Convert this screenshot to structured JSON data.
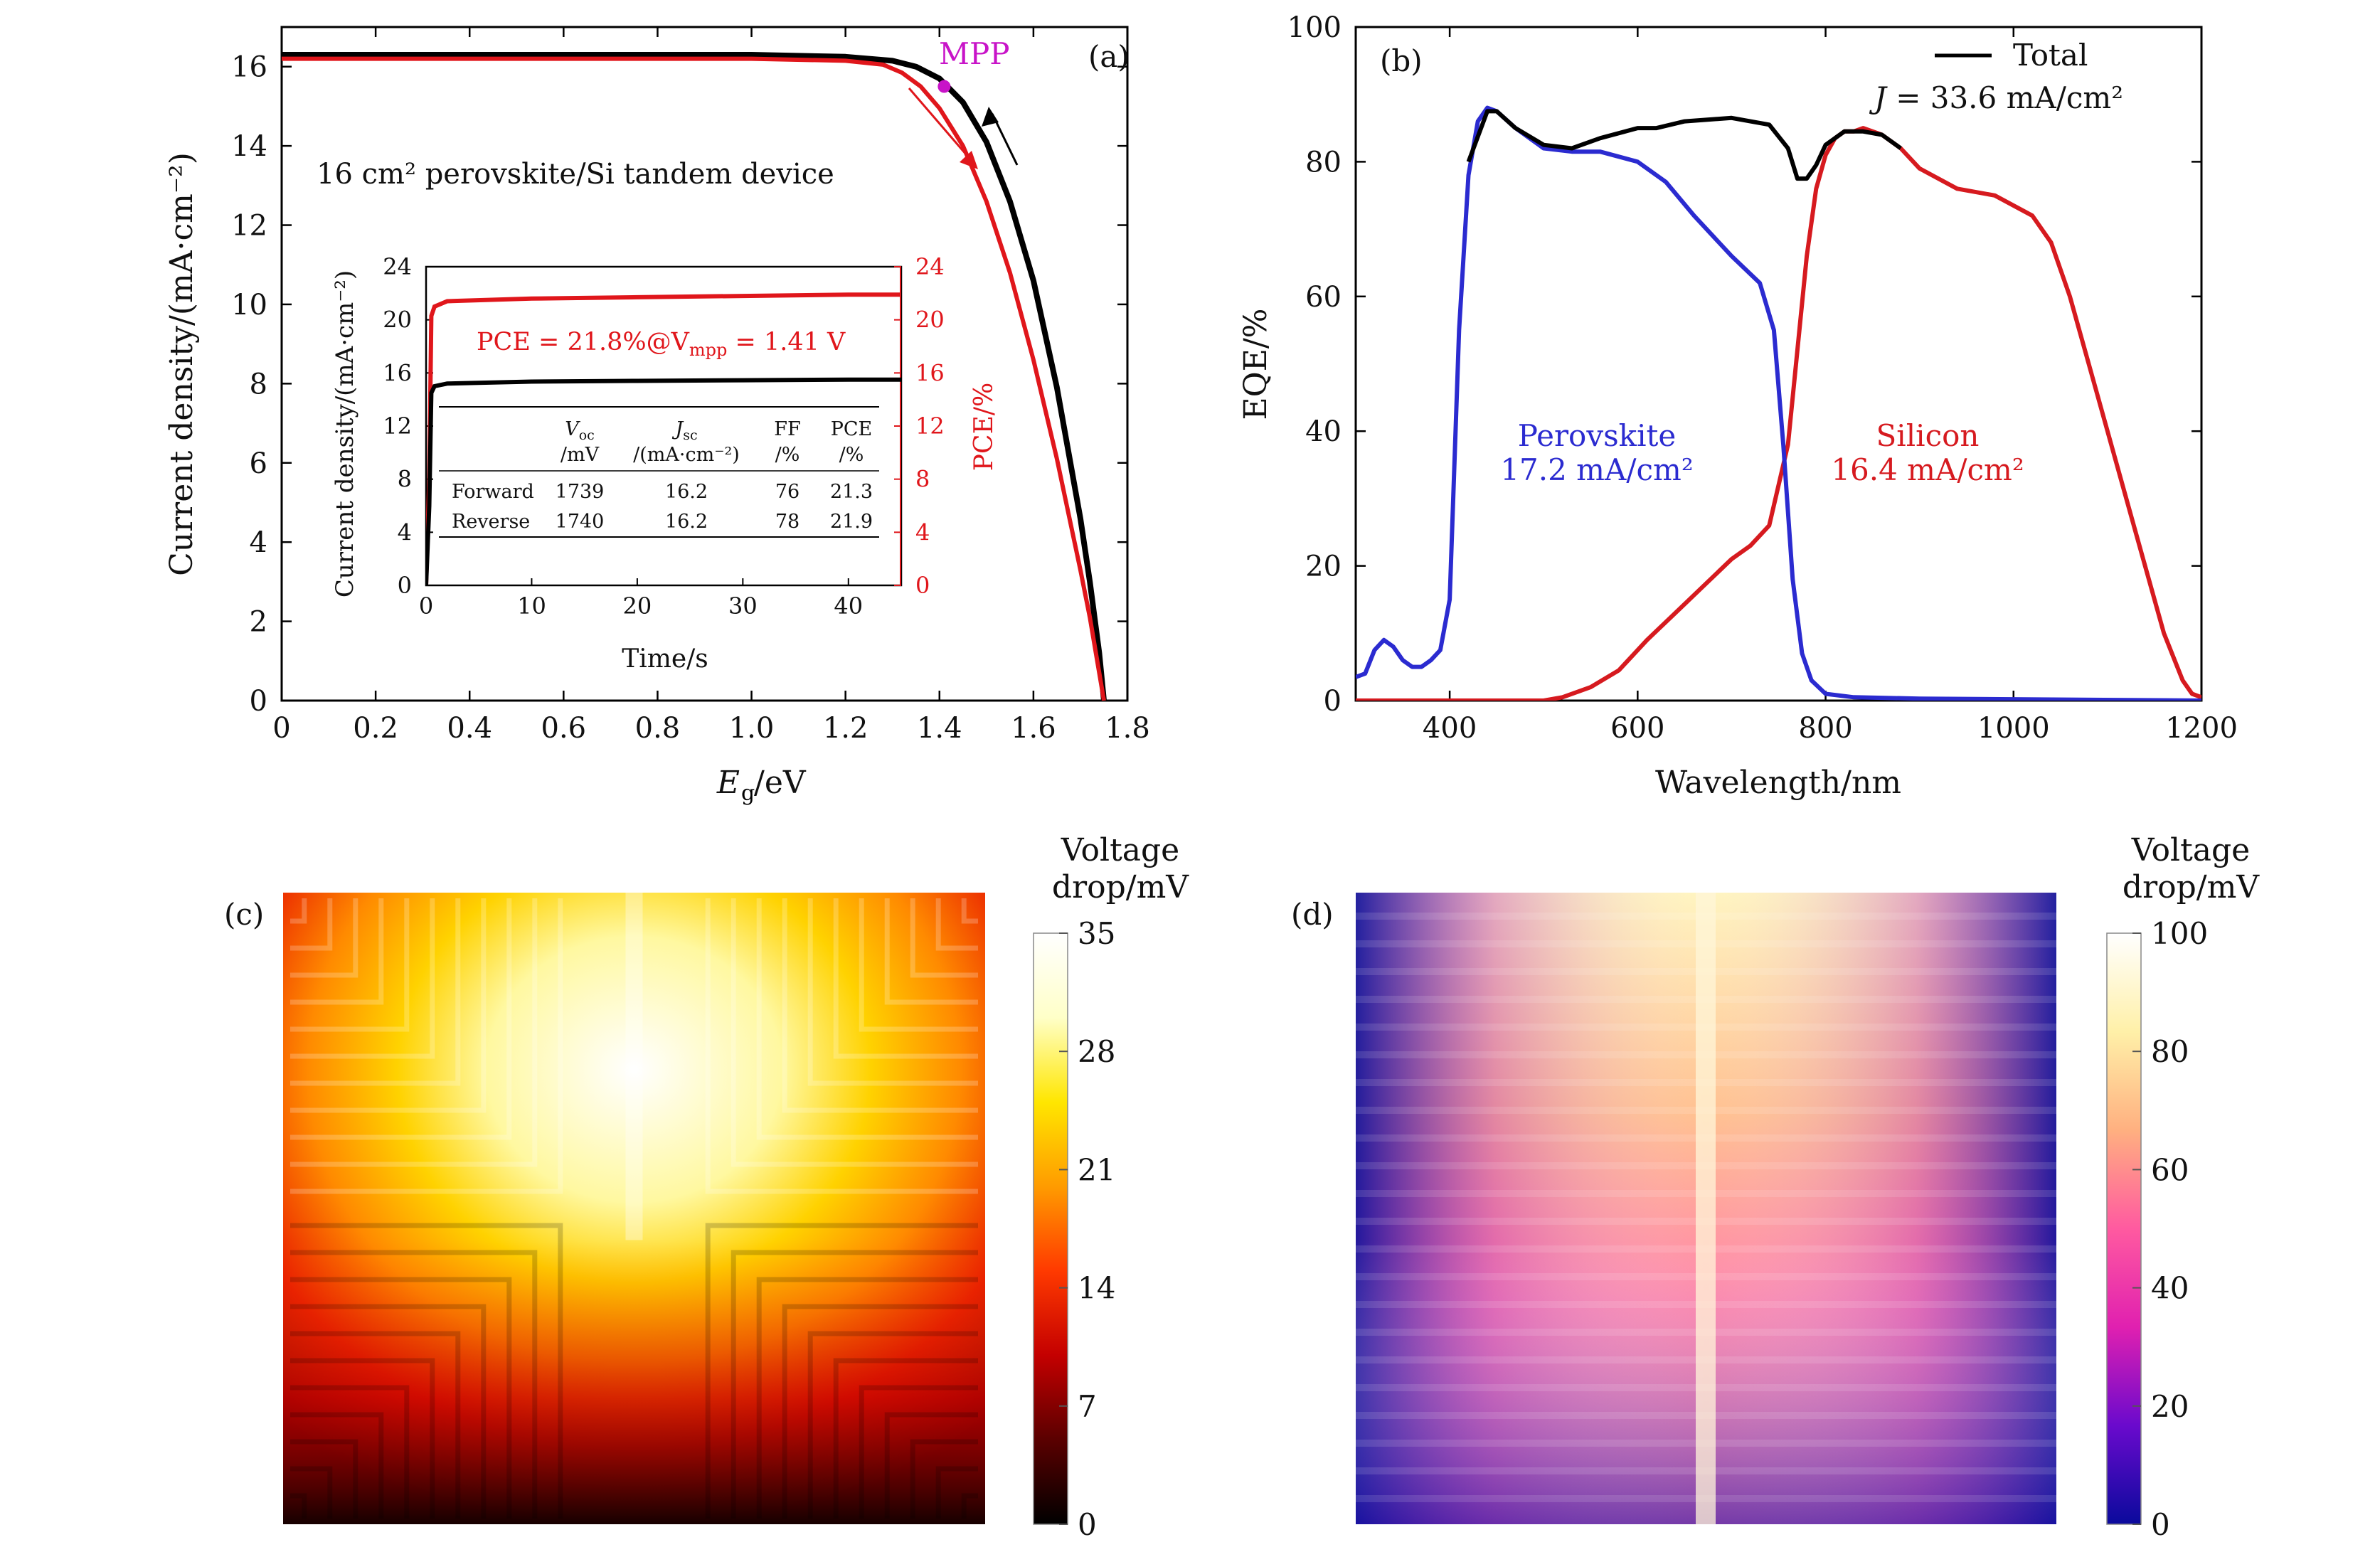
{
  "chart_data": [
    {
      "id": "a",
      "type": "line",
      "panel_label": "(a)",
      "xlabel_main": "E",
      "xlabel_sub": "g",
      "xlabel_unit": "/eV",
      "ylabel": "Current density/(mA·cm⁻²)",
      "xlim": [
        0,
        1.8
      ],
      "ylim": [
        0,
        17
      ],
      "xticks": [
        "0",
        "0.2",
        "0.4",
        "0.6",
        "0.8",
        "1.0",
        "1.2",
        "1.4",
        "1.6",
        "1.8"
      ],
      "yticks": [
        "0",
        "2",
        "4",
        "6",
        "8",
        "10",
        "12",
        "14",
        "16"
      ],
      "annotation_device": "16 cm² perovskite/Si tandem device",
      "annotation_mpp": "MPP",
      "mpp_point": [
        1.41,
        15.5
      ],
      "series": [
        {
          "color": "#000000",
          "x": [
            0,
            0.2,
            0.4,
            0.6,
            0.8,
            1.0,
            1.2,
            1.3,
            1.35,
            1.4,
            1.45,
            1.5,
            1.55,
            1.6,
            1.65,
            1.7,
            1.72,
            1.74,
            1.75
          ],
          "y": [
            16.3,
            16.3,
            16.3,
            16.3,
            16.3,
            16.3,
            16.25,
            16.15,
            16.0,
            15.7,
            15.1,
            14.1,
            12.6,
            10.6,
            7.9,
            4.6,
            3.0,
            1.2,
            0
          ]
        },
        {
          "color": "#e0161b",
          "x": [
            0,
            0.2,
            0.4,
            0.6,
            0.8,
            1.0,
            1.2,
            1.28,
            1.32,
            1.36,
            1.4,
            1.45,
            1.5,
            1.55,
            1.6,
            1.65,
            1.7,
            1.72,
            1.74,
            1.75
          ],
          "y": [
            16.2,
            16.2,
            16.2,
            16.2,
            16.2,
            16.2,
            16.15,
            16.05,
            15.85,
            15.5,
            14.95,
            14.0,
            12.6,
            10.8,
            8.6,
            6.1,
            3.3,
            2.1,
            0.7,
            0
          ]
        }
      ],
      "inset": {
        "xlabel": "Time/s",
        "ylabel_left": "Current density/(mA·cm⁻²)",
        "ylabel_right": "PCE/%",
        "xlim": [
          0,
          45
        ],
        "ylim": [
          0,
          24
        ],
        "xticks": [
          "0",
          "10",
          "20",
          "30",
          "40"
        ],
        "yticks": [
          "0",
          "4",
          "8",
          "12",
          "16",
          "20",
          "24"
        ],
        "pce_text": "PCE = 21.8%@V",
        "pce_sub": "mpp",
        "pce_tail": " = 1.41 V",
        "series": [
          {
            "color": "#e0161b",
            "x": [
              0,
              0.3,
              0.5,
              0.8,
              2,
              10,
              20,
              30,
              40,
              45
            ],
            "y": [
              0,
              8,
              20.3,
              21.0,
              21.4,
              21.6,
              21.7,
              21.8,
              21.9,
              21.9
            ]
          },
          {
            "color": "#000000",
            "x": [
              0,
              0.3,
              0.5,
              0.8,
              2,
              10,
              20,
              30,
              40,
              45
            ],
            "y": [
              0,
              6,
              14.5,
              15.0,
              15.2,
              15.35,
              15.4,
              15.45,
              15.5,
              15.5
            ]
          }
        ],
        "table": {
          "headers": [
            [
              "V",
              "oc",
              "/mV"
            ],
            [
              "J",
              "sc",
              "/(mA·cm⁻²)"
            ],
            [
              "FF",
              "",
              "/%"
            ],
            [
              "PCE",
              "",
              "/%"
            ]
          ],
          "rows": [
            {
              "label": "Forward",
              "values": [
                "1739",
                "16.2",
                "76",
                "21.3"
              ]
            },
            {
              "label": "Reverse",
              "values": [
                "1740",
                "16.2",
                "78",
                "21.9"
              ]
            }
          ]
        }
      }
    },
    {
      "id": "b",
      "type": "line",
      "panel_label": "(b)",
      "xlabel": "Wavelength/nm",
      "ylabel": "EQE/%",
      "xlim": [
        300,
        1200
      ],
      "ylim": [
        0,
        100
      ],
      "xticks": [
        "400",
        "600",
        "800",
        "1000",
        "1200"
      ],
      "yticks": [
        "0",
        "20",
        "40",
        "60",
        "80",
        "100"
      ],
      "legend": {
        "label": "Total",
        "j_label": "J",
        "j_value": " = 33.6 mA/cm²"
      },
      "labels": [
        {
          "name": "Perovskite",
          "value": "17.2 mA/cm²",
          "color": "#2b2bd0"
        },
        {
          "name": "Silicon",
          "value": "16.4 mA/cm²",
          "color": "#d61a1f"
        }
      ],
      "series": [
        {
          "name": "Total",
          "color": "#000000",
          "x": [
            420,
            440,
            450,
            470,
            500,
            530,
            560,
            600,
            620,
            650,
            700,
            740,
            760,
            770,
            780,
            790,
            800,
            820,
            840,
            860,
            880
          ],
          "y": [
            80,
            87.5,
            87.5,
            85,
            82.5,
            82,
            83.5,
            85,
            85,
            86,
            86.5,
            85.5,
            82,
            77.5,
            77.5,
            79.5,
            82.5,
            84.5,
            84.5,
            84,
            82
          ]
        },
        {
          "name": "Perovskite",
          "color": "#2b2bd0",
          "x": [
            300,
            310,
            320,
            330,
            340,
            350,
            360,
            370,
            380,
            390,
            400,
            410,
            420,
            430,
            440,
            450,
            470,
            500,
            530,
            560,
            600,
            630,
            660,
            700,
            730,
            745,
            755,
            765,
            775,
            785,
            800,
            830,
            900,
            1200
          ],
          "y": [
            3.5,
            4,
            7.5,
            9,
            8,
            6,
            5,
            5,
            6,
            7.5,
            15,
            55,
            78,
            86,
            88,
            87.5,
            85,
            82,
            81.5,
            81.5,
            80,
            77,
            72,
            66,
            62,
            55,
            38,
            18,
            7,
            3,
            1,
            0.5,
            0.3,
            0
          ]
        },
        {
          "name": "Silicon",
          "color": "#d61a1f",
          "x": [
            300,
            500,
            520,
            550,
            580,
            610,
            640,
            670,
            700,
            720,
            740,
            760,
            770,
            780,
            790,
            800,
            810,
            820,
            830,
            840,
            860,
            880,
            900,
            940,
            980,
            1020,
            1040,
            1060,
            1080,
            1100,
            1130,
            1160,
            1180,
            1190,
            1200
          ],
          "y": [
            0,
            0,
            0.5,
            2,
            4.5,
            9,
            13,
            17,
            21,
            23,
            26,
            38,
            52,
            66,
            76,
            81,
            83.5,
            84.5,
            84.5,
            85,
            84,
            82,
            79,
            76,
            75,
            72,
            68,
            60,
            50,
            40,
            25,
            10,
            3,
            1,
            0.5
          ]
        }
      ]
    },
    {
      "id": "c",
      "type": "heatmap",
      "panel_label": "(c)",
      "colorbar_title": [
        "Voltage",
        "drop/mV"
      ],
      "colorbar_ticks": [
        "0",
        "7",
        "14",
        "21",
        "28",
        "35"
      ],
      "range": [
        0,
        35
      ],
      "colormap": [
        "#000000",
        "#5a0000",
        "#c40000",
        "#ff3a00",
        "#ff9b00",
        "#ffe600",
        "#ffffc8",
        "#ffffff"
      ]
    },
    {
      "id": "d",
      "type": "heatmap",
      "panel_label": "(d)",
      "colorbar_title": [
        "Voltage",
        "drop/mV"
      ],
      "colorbar_ticks": [
        "0",
        "20",
        "40",
        "60",
        "80",
        "100"
      ],
      "range": [
        0,
        100
      ],
      "colormap": [
        "#0a0a9c",
        "#6a0acd",
        "#e020b0",
        "#ff5aa0",
        "#ffb080",
        "#fff0a8",
        "#ffffff"
      ]
    }
  ]
}
